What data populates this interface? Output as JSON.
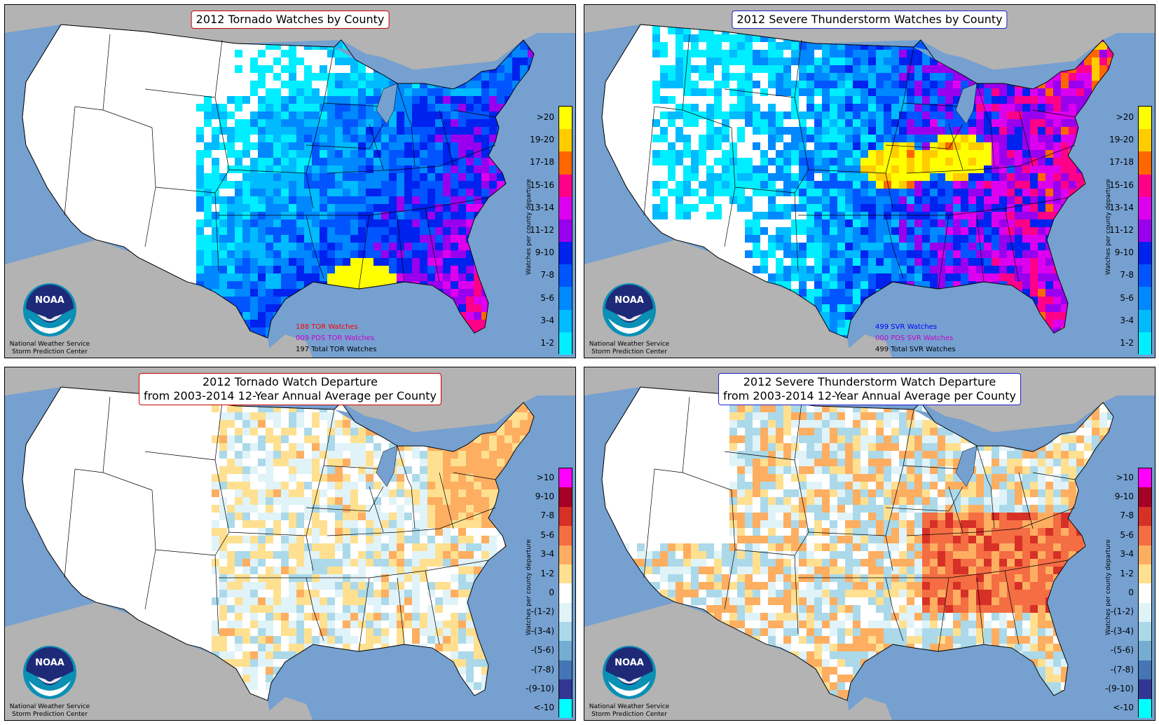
{
  "panels": [
    {
      "id": "tor",
      "title_lines": [
        "2012 Tornado Watches by County"
      ],
      "title_border": "#cc0000",
      "stats": [
        {
          "text": "188 TOR Watches",
          "color": "#ff0000"
        },
        {
          "text": "009 PDS TOR Watches",
          "color": "#cc00cc"
        },
        {
          "text": "197 Total TOR Watches",
          "color": "#000000"
        }
      ],
      "legend_title": "Watches per county departure",
      "legend": [
        {
          "label": ">20",
          "color": "#ffff00"
        },
        {
          "label": "19-20",
          "color": "#ffcc00"
        },
        {
          "label": "17-18",
          "color": "#ff6600"
        },
        {
          "label": "15-16",
          "color": "#ff0088"
        },
        {
          "label": "13-14",
          "color": "#dd00ee"
        },
        {
          "label": "11-12",
          "color": "#9900ee"
        },
        {
          "label": "9-10",
          "color": "#0022ee"
        },
        {
          "label": "7-8",
          "color": "#0055ff"
        },
        {
          "label": "5-6",
          "color": "#0088ff"
        },
        {
          "label": "3-4",
          "color": "#00bbff"
        },
        {
          "label": "1-2",
          "color": "#00eeff"
        }
      ]
    },
    {
      "id": "svr",
      "title_lines": [
        "2012 Severe Thunderstorm Watches by County"
      ],
      "title_border": "#2222cc",
      "stats": [
        {
          "text": "499 SVR Watches",
          "color": "#0000ff"
        },
        {
          "text": "000 PDS SVR Watches",
          "color": "#cc00cc"
        },
        {
          "text": "499 Total SVR Watches",
          "color": "#000000"
        }
      ],
      "legend_title": "Watches per county departure",
      "legend": [
        {
          "label": ">20",
          "color": "#ffff00"
        },
        {
          "label": "19-20",
          "color": "#ffcc00"
        },
        {
          "label": "17-18",
          "color": "#ff6600"
        },
        {
          "label": "15-16",
          "color": "#ff0088"
        },
        {
          "label": "13-14",
          "color": "#dd00ee"
        },
        {
          "label": "11-12",
          "color": "#9900ee"
        },
        {
          "label": "9-10",
          "color": "#0022ee"
        },
        {
          "label": "7-8",
          "color": "#0055ff"
        },
        {
          "label": "5-6",
          "color": "#0088ff"
        },
        {
          "label": "3-4",
          "color": "#00bbff"
        },
        {
          "label": "1-2",
          "color": "#00eeff"
        }
      ]
    },
    {
      "id": "tor-dep",
      "title_lines": [
        "2012 Tornado Watch Departure",
        "from 2003-2014 12-Year Annual Average per County"
      ],
      "title_border": "#cc0000",
      "stats": [],
      "legend_title": "Watches per county departure",
      "legend": [
        {
          "label": ">10",
          "color": "#ff00ff"
        },
        {
          "label": "9-10",
          "color": "#a50026"
        },
        {
          "label": "7-8",
          "color": "#d73027"
        },
        {
          "label": "5-6",
          "color": "#f46d43"
        },
        {
          "label": "3-4",
          "color": "#fdae61"
        },
        {
          "label": "1-2",
          "color": "#fee090"
        },
        {
          "label": "0",
          "color": "#ffffff"
        },
        {
          "label": "-(1-2)",
          "color": "#e0f3f8"
        },
        {
          "label": "-(3-4)",
          "color": "#abd9e9"
        },
        {
          "label": "-(5-6)",
          "color": "#74add1"
        },
        {
          "label": "-(7-8)",
          "color": "#4575b4"
        },
        {
          "label": "-(9-10)",
          "color": "#313695"
        },
        {
          "label": "<-10",
          "color": "#00ffff"
        }
      ]
    },
    {
      "id": "svr-dep",
      "title_lines": [
        "2012 Severe Thunderstorm Watch Departure",
        "from 2003-2014 12-Year Annual Average per County"
      ],
      "title_border": "#2222cc",
      "stats": [],
      "legend_title": "Watches per county departure",
      "legend": [
        {
          "label": ">10",
          "color": "#ff00ff"
        },
        {
          "label": "9-10",
          "color": "#a50026"
        },
        {
          "label": "7-8",
          "color": "#d73027"
        },
        {
          "label": "5-6",
          "color": "#f46d43"
        },
        {
          "label": "3-4",
          "color": "#fdae61"
        },
        {
          "label": "1-2",
          "color": "#fee090"
        },
        {
          "label": "0",
          "color": "#ffffff"
        },
        {
          "label": "-(1-2)",
          "color": "#e0f3f8"
        },
        {
          "label": "-(3-4)",
          "color": "#abd9e9"
        },
        {
          "label": "-(5-6)",
          "color": "#74add1"
        },
        {
          "label": "-(7-8)",
          "color": "#4575b4"
        },
        {
          "label": "-(9-10)",
          "color": "#313695"
        },
        {
          "label": "<-10",
          "color": "#00ffff"
        }
      ]
    }
  ],
  "logo": {
    "text": "NOAA",
    "line1": "National Weather Service",
    "line2": "Storm Prediction Center"
  },
  "colors": {
    "ocean": "#75a0d0",
    "land_foreign": "#b3b3b3",
    "land_us": "#ffffff"
  }
}
